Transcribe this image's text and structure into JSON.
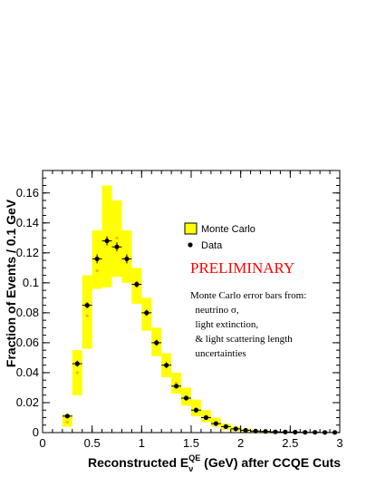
{
  "chart_data": {
    "type": "bar",
    "xlabel_main": "Reconstructed E",
    "xlabel_sup": "QE",
    "xlabel_sub": "ν",
    "xlabel_rest": " (GeV) after CCQE Cuts",
    "ylabel": "Fraction of Events / 0.1 GeV",
    "xlim": [
      0,
      3
    ],
    "ylim": [
      0,
      0.175
    ],
    "xticks": [
      0,
      0.5,
      1,
      1.5,
      2,
      2.5,
      3
    ],
    "xtick_labels": [
      "0",
      "0.5",
      "1",
      "1.5",
      "2",
      "2.5",
      "3"
    ],
    "yticks": [
      0,
      0.02,
      0.04,
      0.06,
      0.08,
      0.1,
      0.12,
      0.14,
      0.16
    ],
    "ytick_labels": [
      "0",
      "0.02",
      "0.04",
      "0.06",
      "0.08",
      "0.1",
      "0.12",
      "0.14",
      "0.16"
    ],
    "bin_width": 0.1,
    "series": [
      {
        "name": "Monte Carlo",
        "style": "yellow error band",
        "color": "#ffff00",
        "x": [
          0.25,
          0.35,
          0.45,
          0.55,
          0.65,
          0.75,
          0.85,
          0.95,
          1.05,
          1.15,
          1.25,
          1.35,
          1.45,
          1.55,
          1.65,
          1.75,
          1.85,
          1.95,
          2.05,
          2.15,
          2.25,
          2.35,
          2.45,
          2.55,
          2.65,
          2.75,
          2.85,
          2.95
        ],
        "low": [
          0.004,
          0.025,
          0.056,
          0.096,
          0.097,
          0.104,
          0.1,
          0.086,
          0.068,
          0.051,
          0.037,
          0.026,
          0.018,
          0.011,
          0.007,
          0.004,
          0.002,
          0.001,
          0.0005,
          0.0003,
          0.0002,
          0.0001,
          0.0001,
          0.0001,
          0.0001,
          0,
          0,
          0
        ],
        "high": [
          0.012,
          0.055,
          0.105,
          0.135,
          0.165,
          0.155,
          0.135,
          0.11,
          0.09,
          0.07,
          0.053,
          0.04,
          0.03,
          0.022,
          0.015,
          0.01,
          0.006,
          0.004,
          0.0025,
          0.0018,
          0.0012,
          0.0009,
          0.0006,
          0.0005,
          0.0004,
          0.0003,
          0.0002,
          0.0002
        ],
        "central": [
          0.007,
          0.04,
          0.078,
          0.108,
          0.128,
          0.13,
          0.116,
          0.098,
          0.079,
          0.061,
          0.045,
          0.033,
          0.024,
          0.016,
          0.011,
          0.007,
          0.004,
          0.0025,
          0.0015,
          0.001,
          0.0007,
          0.0005,
          0.0004,
          0.0003,
          0.0002,
          0.0001,
          0.0001,
          0.0001
        ]
      },
      {
        "name": "Data",
        "style": "black points with error bars",
        "color": "#000000",
        "x": [
          0.25,
          0.35,
          0.45,
          0.55,
          0.65,
          0.75,
          0.85,
          0.95,
          1.05,
          1.15,
          1.25,
          1.35,
          1.45,
          1.55,
          1.65,
          1.75,
          1.85,
          1.95,
          2.05,
          2.15,
          2.25,
          2.35,
          2.45,
          2.55,
          2.65,
          2.75,
          2.85,
          2.95
        ],
        "values": [
          0.011,
          0.046,
          0.085,
          0.116,
          0.128,
          0.124,
          0.116,
          0.099,
          0.08,
          0.06,
          0.045,
          0.031,
          0.023,
          0.015,
          0.01,
          0.006,
          0.004,
          0.0025,
          0.0015,
          0.001,
          0.0008,
          0.0005,
          0.0004,
          0.0003,
          0.0002,
          0.0002,
          0.0001,
          0.0001
        ],
        "yerr": [
          0.001,
          0.002,
          0.002,
          0.003,
          0.003,
          0.003,
          0.003,
          0.002,
          0.002,
          0.002,
          0.002,
          0.0015,
          0.0012,
          0.001,
          0.0008,
          0.0006,
          0.0005,
          0.0004,
          0.0003,
          0.0003,
          0.0002,
          0.0002,
          0.0002,
          0.0001,
          0.0001,
          0.0001,
          0.0001,
          0.0001
        ]
      }
    ],
    "legend": {
      "mc_label": "Monte Carlo",
      "data_label": "Data"
    },
    "preliminary": "PRELIMINARY",
    "note_lines": [
      "Monte Carlo error bars from:",
      "  neutrino σ,",
      "  light extinction,",
      "  & light scattering length",
      "  uncertainties"
    ],
    "grid": false
  }
}
